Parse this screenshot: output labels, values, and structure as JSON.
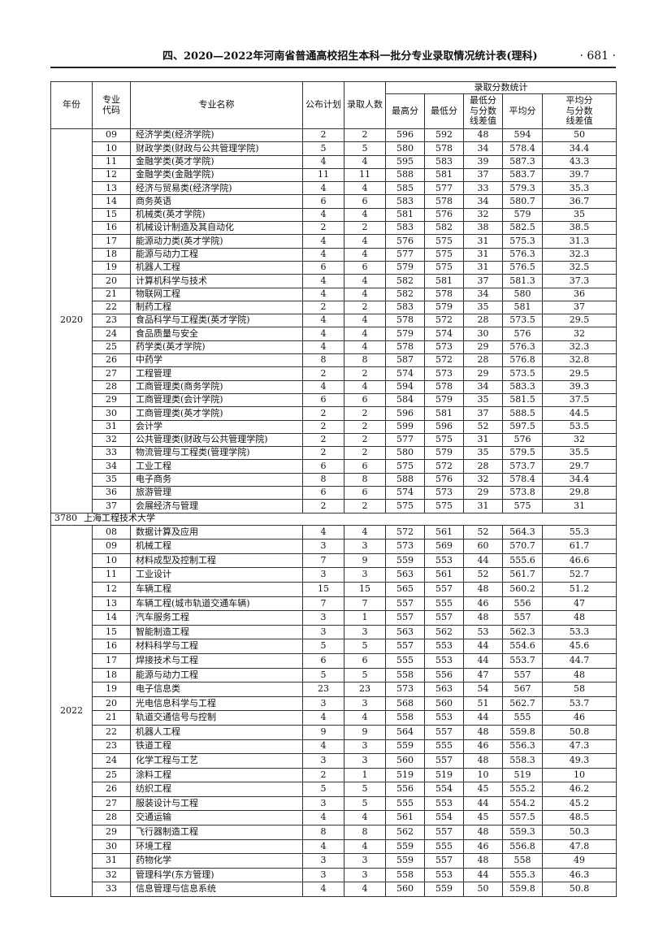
{
  "page": {
    "title": "四、2020—2022年河南省普通高校招生本科一批分专业录取情况统计表(理科)",
    "page_number": "· 681 ·"
  },
  "table": {
    "headers": {
      "year": "年份",
      "code": "专业代码",
      "name": "专业名称",
      "plan": "公布计划",
      "admitted": "录取人数",
      "stats_group": "录取分数统计",
      "max": "最高分",
      "min": "最低分",
      "min_diff": "最低分与分数线差值",
      "avg": "平均分",
      "avg_diff": "平均分与分数线差值"
    },
    "sections": [
      {
        "year": "2020",
        "rows": [
          [
            "09",
            "经济学类(经济学院)",
            "2",
            "2",
            "596",
            "592",
            "48",
            "594",
            "50"
          ],
          [
            "10",
            "财政学类(财政与公共管理学院)",
            "5",
            "5",
            "580",
            "578",
            "34",
            "578.4",
            "34.4"
          ],
          [
            "11",
            "金融学类(英才学院)",
            "4",
            "4",
            "595",
            "583",
            "39",
            "587.3",
            "43.3"
          ],
          [
            "12",
            "金融学类(金融学院)",
            "11",
            "11",
            "588",
            "581",
            "37",
            "583.7",
            "39.7"
          ],
          [
            "13",
            "经济与贸易类(经济学院)",
            "4",
            "4",
            "585",
            "577",
            "33",
            "579.3",
            "35.3"
          ],
          [
            "14",
            "商务英语",
            "6",
            "6",
            "583",
            "578",
            "34",
            "580.7",
            "36.7"
          ],
          [
            "15",
            "机械类(英才学院)",
            "4",
            "4",
            "581",
            "576",
            "32",
            "579",
            "35"
          ],
          [
            "16",
            "机械设计制造及其自动化",
            "2",
            "2",
            "583",
            "582",
            "38",
            "582.5",
            "38.5"
          ],
          [
            "17",
            "能源动力类(英才学院)",
            "4",
            "4",
            "576",
            "575",
            "31",
            "575.3",
            "31.3"
          ],
          [
            "18",
            "能源与动力工程",
            "4",
            "4",
            "577",
            "575",
            "31",
            "576.3",
            "32.3"
          ],
          [
            "19",
            "机器人工程",
            "6",
            "6",
            "579",
            "575",
            "31",
            "576.5",
            "32.5"
          ],
          [
            "20",
            "计算机科学与技术",
            "4",
            "4",
            "582",
            "581",
            "37",
            "581.3",
            "37.3"
          ],
          [
            "21",
            "物联网工程",
            "4",
            "4",
            "582",
            "578",
            "34",
            "580",
            "36"
          ],
          [
            "22",
            "制药工程",
            "2",
            "2",
            "583",
            "579",
            "35",
            "581",
            "37"
          ],
          [
            "23",
            "食品科学与工程类(英才学院)",
            "4",
            "4",
            "578",
            "572",
            "28",
            "573.5",
            "29.5"
          ],
          [
            "24",
            "食品质量与安全",
            "4",
            "4",
            "579",
            "574",
            "30",
            "576",
            "32"
          ],
          [
            "25",
            "药学类(英才学院)",
            "4",
            "4",
            "578",
            "573",
            "29",
            "576.3",
            "32.3"
          ],
          [
            "26",
            "中药学",
            "8",
            "8",
            "587",
            "572",
            "28",
            "576.8",
            "32.8"
          ],
          [
            "27",
            "工程管理",
            "2",
            "2",
            "574",
            "573",
            "29",
            "573.5",
            "29.5"
          ],
          [
            "28",
            "工商管理类(商务学院)",
            "4",
            "4",
            "594",
            "578",
            "34",
            "583.3",
            "39.3"
          ],
          [
            "29",
            "工商管理类(会计学院)",
            "6",
            "6",
            "584",
            "579",
            "35",
            "581.5",
            "37.5"
          ],
          [
            "30",
            "工商管理类(英才学院)",
            "2",
            "2",
            "596",
            "581",
            "37",
            "588.5",
            "44.5"
          ],
          [
            "31",
            "会计学",
            "2",
            "2",
            "599",
            "596",
            "52",
            "597.5",
            "53.5"
          ],
          [
            "32",
            "公共管理类(财政与公共管理学院)",
            "2",
            "2",
            "577",
            "575",
            "31",
            "576",
            "32"
          ],
          [
            "33",
            "物流管理与工程类(管理学院)",
            "2",
            "2",
            "580",
            "579",
            "35",
            "579.5",
            "35.5"
          ],
          [
            "34",
            "工业工程",
            "6",
            "6",
            "575",
            "572",
            "28",
            "573.7",
            "29.7"
          ],
          [
            "35",
            "电子商务",
            "8",
            "8",
            "588",
            "576",
            "32",
            "578.4",
            "34.4"
          ],
          [
            "36",
            "旅游管理",
            "6",
            "6",
            "574",
            "573",
            "29",
            "573.8",
            "29.8"
          ],
          [
            "37",
            "会展经济与管理",
            "2",
            "2",
            "575",
            "575",
            "31",
            "575",
            "31"
          ]
        ]
      },
      {
        "school_code": "3780",
        "school_name": "上海工程技术大学",
        "year": "2022",
        "rows": [
          [
            "08",
            "数据计算及应用",
            "4",
            "4",
            "572",
            "561",
            "52",
            "564.3",
            "55.3"
          ],
          [
            "09",
            "机械工程",
            "3",
            "3",
            "573",
            "569",
            "60",
            "570.7",
            "61.7"
          ],
          [
            "10",
            "材料成型及控制工程",
            "7",
            "9",
            "559",
            "553",
            "44",
            "555.6",
            "46.6"
          ],
          [
            "11",
            "工业设计",
            "3",
            "3",
            "563",
            "561",
            "52",
            "561.7",
            "52.7"
          ],
          [
            "12",
            "车辆工程",
            "15",
            "15",
            "565",
            "557",
            "48",
            "560.2",
            "51.2"
          ],
          [
            "13",
            "车辆工程(城市轨道交通车辆)",
            "7",
            "7",
            "557",
            "555",
            "46",
            "556",
            "47"
          ],
          [
            "14",
            "汽车服务工程",
            "3",
            "1",
            "557",
            "557",
            "48",
            "557",
            "48"
          ],
          [
            "15",
            "智能制造工程",
            "3",
            "3",
            "563",
            "562",
            "53",
            "562.3",
            "53.3"
          ],
          [
            "16",
            "材料科学与工程",
            "5",
            "5",
            "557",
            "553",
            "44",
            "554.6",
            "45.6"
          ],
          [
            "17",
            "焊接技术与工程",
            "6",
            "6",
            "555",
            "553",
            "44",
            "553.7",
            "44.7"
          ],
          [
            "18",
            "能源与动力工程",
            "5",
            "5",
            "558",
            "556",
            "47",
            "557",
            "48"
          ],
          [
            "19",
            "电子信息类",
            "23",
            "23",
            "573",
            "563",
            "54",
            "567",
            "58"
          ],
          [
            "20",
            "光电信息科学与工程",
            "3",
            "3",
            "568",
            "560",
            "51",
            "562.7",
            "53.7"
          ],
          [
            "21",
            "轨道交通信号与控制",
            "4",
            "4",
            "558",
            "553",
            "44",
            "555",
            "46"
          ],
          [
            "22",
            "机器人工程",
            "9",
            "9",
            "564",
            "557",
            "48",
            "559.8",
            "50.8"
          ],
          [
            "23",
            "铁道工程",
            "4",
            "3",
            "559",
            "555",
            "46",
            "556.3",
            "47.3"
          ],
          [
            "24",
            "化学工程与工艺",
            "3",
            "3",
            "560",
            "557",
            "48",
            "558.3",
            "49.3"
          ],
          [
            "25",
            "涂料工程",
            "2",
            "1",
            "519",
            "519",
            "10",
            "519",
            "10"
          ],
          [
            "26",
            "纺织工程",
            "5",
            "5",
            "556",
            "554",
            "45",
            "555.2",
            "46.2"
          ],
          [
            "27",
            "服装设计与工程",
            "3",
            "5",
            "555",
            "553",
            "44",
            "554.2",
            "45.2"
          ],
          [
            "28",
            "交通运输",
            "4",
            "4",
            "561",
            "554",
            "45",
            "557.5",
            "48.5"
          ],
          [
            "29",
            "飞行器制造工程",
            "8",
            "8",
            "562",
            "557",
            "48",
            "559.3",
            "50.3"
          ],
          [
            "30",
            "环境工程",
            "4",
            "4",
            "559",
            "555",
            "46",
            "556.8",
            "47.8"
          ],
          [
            "31",
            "药物化学",
            "3",
            "3",
            "559",
            "557",
            "48",
            "558",
            "49"
          ],
          [
            "32",
            "管理科学(东方管理)",
            "3",
            "3",
            "558",
            "553",
            "44",
            "555.3",
            "46.3"
          ],
          [
            "33",
            "信息管理与信息系统",
            "4",
            "4",
            "560",
            "559",
            "50",
            "559.8",
            "50.8"
          ]
        ]
      }
    ]
  }
}
